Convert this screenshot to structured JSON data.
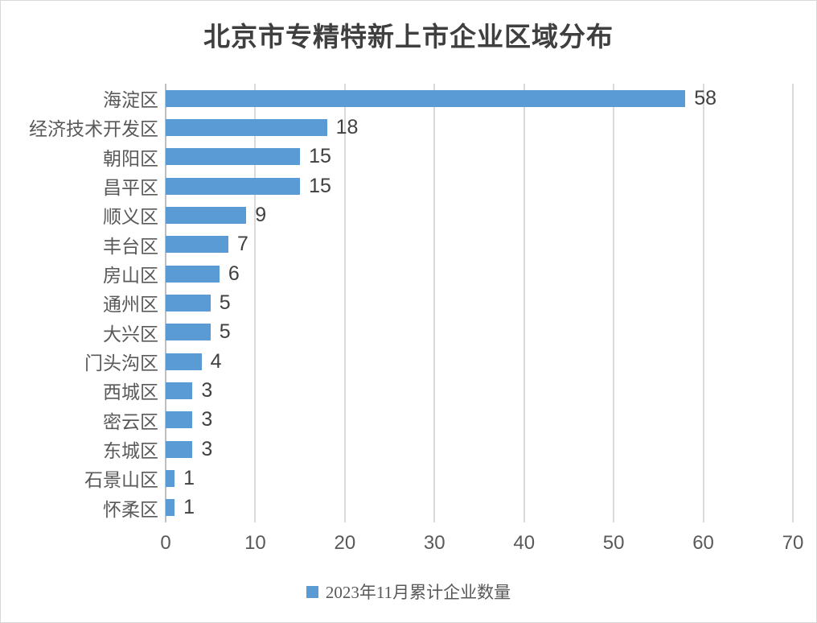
{
  "chart_data": {
    "type": "bar",
    "orientation": "horizontal",
    "title": "北京市专精特新上市企业区域分布",
    "categories": [
      "海淀区",
      "经济技术开发区",
      "朝阳区",
      "昌平区",
      "顺义区",
      "丰台区",
      "房山区",
      "通州区",
      "大兴区",
      "门头沟区",
      "西城区",
      "密云区",
      "东城区",
      "石景山区",
      "怀柔区"
    ],
    "values": [
      58,
      18,
      15,
      15,
      9,
      7,
      6,
      5,
      5,
      4,
      3,
      3,
      3,
      1,
      1
    ],
    "series_name": "2023年11月累计企业数量",
    "xlabel": "",
    "ylabel": "",
    "xlim": [
      0,
      70
    ],
    "x_ticks": [
      0,
      10,
      20,
      30,
      40,
      50,
      60,
      70
    ],
    "grid": "vertical-only",
    "data_labels": true,
    "legend_position": "bottom"
  },
  "colors": {
    "bar": "#5b9bd5",
    "gridline": "#d9d9d9",
    "axis_line": "#bfbfbf",
    "tick_label": "#595959",
    "category_label": "#595959",
    "value_label": "#404040",
    "title": "#3f3f3f",
    "legend_text": "#595959",
    "frame_border": "#d9d9d9"
  }
}
